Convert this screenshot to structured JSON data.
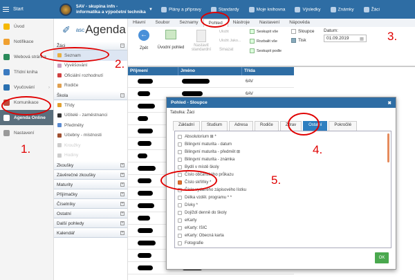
{
  "topbar": {
    "start": "Start",
    "school_line1": "5AV - skupina infn -",
    "school_line2": "informatika a výpočetní technika",
    "nav": [
      "Plány a přípravy",
      "Standardy",
      "Moje knihovna",
      "Výsledky",
      "Známky",
      "Žáci"
    ]
  },
  "sidebar": {
    "items": [
      {
        "label": "Úvod",
        "color": "#f5b800"
      },
      {
        "label": "Notifikace",
        "color": "#f0a030"
      },
      {
        "label": "Webová stránka",
        "color": "#2a8a5a"
      },
      {
        "label": "Třídní kniha",
        "color": "#3a7ac0"
      },
      {
        "label": "Vyučování",
        "color": "#2a70b0",
        "arrow": true
      },
      {
        "label": "Komunikace",
        "color": "#c04a3a",
        "arrow": true
      },
      {
        "label": "Agenda Online",
        "color": "#ffffff",
        "active": true
      },
      {
        "label": "Nastavení",
        "color": "#999999"
      }
    ]
  },
  "agenda": {
    "brand_prefix": "asc",
    "brand": "Agenda",
    "groups": [
      {
        "title": "Žáci",
        "open": true,
        "items": [
          {
            "label": "Seznam",
            "selected": true
          },
          {
            "label": "Vyvěšování"
          },
          {
            "label": "Oficiální rozhodnutí"
          },
          {
            "label": "Rodiče"
          }
        ]
      },
      {
        "title": "Škola",
        "open": true,
        "items": [
          {
            "label": "Třídy"
          },
          {
            "label": "Učitelé - zaměstnanci"
          },
          {
            "label": "Předměty"
          },
          {
            "label": "Učebny - místnosti"
          },
          {
            "label": "Kroužky",
            "disabled": true
          },
          {
            "label": "Hodiny",
            "disabled": true
          }
        ]
      },
      {
        "title": "Zkoušky"
      },
      {
        "title": "Závěrečné zkoušky"
      },
      {
        "title": "Maturity"
      },
      {
        "title": "Přijímačky"
      },
      {
        "title": "Číselníky"
      },
      {
        "title": "Ostatní"
      },
      {
        "title": "Další pohledy"
      },
      {
        "title": "Kalendář"
      }
    ]
  },
  "ribbon": {
    "tabs": [
      "Hlavní",
      "Soubor",
      "Seznamy",
      "Pohled",
      "Nástroje",
      "Nastavení",
      "Nápověda"
    ],
    "active": "Pohled",
    "back": "Zpět",
    "home_view": "Úvodní pohled",
    "set_standard": "Nastavit standardní",
    "save": "Uložit",
    "save_as": "Uložit Jako...",
    "delete": "Smazat",
    "collapse_all": "Seskupit vše",
    "expand_all": "Rozbalit vše",
    "group_by": "Seskupit podle",
    "columns": "Sloupce",
    "print": "Tisk",
    "date_label": "Datum:",
    "date_value": "01.09.2019"
  },
  "table": {
    "headers": [
      "Příjmení",
      "Jméno",
      "Třída"
    ],
    "class_value": "6AV"
  },
  "dialog": {
    "title": "Pohled - Sloupce",
    "subtitle": "Tabulka: Žáci",
    "tabs": [
      "Základní",
      "Studium",
      "Adresa",
      "Rodiče",
      "Zdrav",
      "Ostatní",
      "Pokročilé"
    ],
    "active_tab": "Ostatní",
    "options": [
      {
        "label": "Absolutorium ⊞ *",
        "checked": false
      },
      {
        "label": "Bilingvní maturita - datum",
        "checked": false
      },
      {
        "label": "Bilingvní maturita - předmět ⊞",
        "checked": false
      },
      {
        "label": "Bilingvní maturita - známka",
        "checked": false
      },
      {
        "label": "Bydlí v místě školy",
        "checked": false
      },
      {
        "label": "Číslo občanského průkazu",
        "checked": false
      },
      {
        "label": "Číslo skříňky *",
        "checked": true
      },
      {
        "label": "Číslo vydaného zápisového lístku",
        "checked": false
      },
      {
        "label": "Délka vzděl. programu * *",
        "checked": false
      },
      {
        "label": "Dívky *",
        "checked": false
      },
      {
        "label": "Dojíždí denně do školy",
        "checked": false
      },
      {
        "label": "eKarty",
        "checked": false
      },
      {
        "label": "eKarty: ISIC",
        "checked": false
      },
      {
        "label": "eKarty: Obecná karta",
        "checked": false
      },
      {
        "label": "Fotografie",
        "checked": false
      }
    ],
    "ok": "OK",
    "close": "✖"
  },
  "annotations": [
    "1.",
    "2.",
    "3.",
    "4.",
    "5."
  ],
  "colors": {
    "primary": "#2e6da4",
    "annotation": "#e00000",
    "ok": "#4aa84e"
  }
}
